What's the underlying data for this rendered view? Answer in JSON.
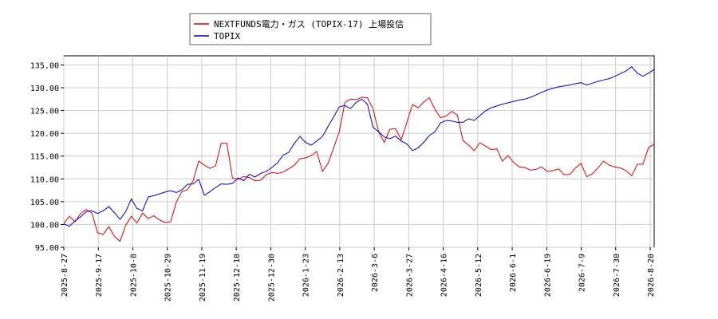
{
  "chart_data": {
    "type": "line",
    "title": "",
    "xlabel": "",
    "ylabel": "",
    "ylim": [
      95,
      137
    ],
    "y_ticks": [
      "95.00",
      "100.00",
      "105.00",
      "110.00",
      "115.00",
      "120.00",
      "125.00",
      "130.00",
      "135.00"
    ],
    "x_tick_labels": [
      "2025-8-27",
      "2025-9-17",
      "2025-10-8",
      "2025-10-29",
      "2025-11-19",
      "2025-12-10",
      "2025-12-30",
      "2026-1-23",
      "2026-2-13",
      "2026-3-6",
      "2026-3-27",
      "2026-4-16",
      "2026-5-12",
      "2026-6-1",
      "2026-6-19",
      "2026-7-9",
      "2026-7-30",
      "2026-8-20"
    ],
    "grid": true,
    "legend_position": "top-center",
    "series": [
      {
        "name": "NEXTFUNDS電力・ガス (TOPIX-17) 上場投信",
        "color": "#dd0000",
        "values": [
          100.2,
          101.8,
          100.6,
          102.4,
          103.3,
          102.5,
          98.2,
          97.8,
          99.5,
          97.4,
          96.3,
          99.8,
          101.8,
          100.3,
          102.5,
          101.3,
          101.9,
          101.0,
          100.4,
          100.6,
          104.9,
          107.2,
          107.6,
          109.6,
          113.9,
          113.0,
          112.3,
          112.9,
          117.8,
          117.8,
          110.2,
          109.9,
          110.5,
          110.3,
          109.6,
          109.7,
          110.9,
          111.4,
          111.2,
          111.5,
          112.2,
          113.0,
          114.4,
          114.6,
          115.1,
          116.0,
          111.6,
          113.4,
          116.8,
          120.4,
          126.8,
          127.5,
          127.4,
          127.9,
          127.8,
          125.4,
          120.3,
          118.0,
          120.9,
          121.0,
          118.6,
          122.3,
          126.3,
          125.6,
          126.8,
          127.8,
          125.3,
          123.4,
          123.8,
          124.8,
          124.0,
          118.4,
          117.4,
          116.2,
          117.9,
          117.2,
          116.4,
          116.6,
          113.9,
          115.1,
          113.6,
          112.6,
          112.5,
          111.9,
          112.1,
          112.6,
          111.6,
          111.8,
          112.2,
          110.9,
          111.0,
          112.4,
          113.4,
          110.5,
          111.1,
          112.4,
          113.9,
          113.0,
          112.6,
          112.4,
          111.8,
          110.7,
          113.2,
          113.2,
          116.9,
          117.6
        ]
      },
      {
        "name": "TOPIX",
        "color": "#0000cc",
        "values": [
          100.1,
          99.6,
          100.8,
          101.7,
          102.8,
          103.0,
          102.4,
          103.0,
          103.9,
          102.6,
          101.1,
          102.8,
          105.6,
          103.5,
          103.0,
          106.0,
          106.3,
          106.7,
          107.1,
          107.4,
          107.0,
          107.6,
          108.8,
          108.9,
          109.9,
          106.4,
          107.2,
          108.1,
          108.9,
          108.8,
          109.0,
          110.2,
          109.6,
          111.0,
          110.4,
          111.2,
          111.6,
          112.5,
          113.5,
          115.2,
          115.8,
          117.8,
          119.3,
          118.0,
          117.4,
          118.3,
          119.3,
          121.5,
          123.6,
          125.8,
          126.1,
          125.4,
          126.8,
          127.5,
          126.4,
          121.3,
          120.3,
          119.2,
          118.8,
          119.4,
          118.3,
          117.7,
          116.2,
          116.8,
          118.0,
          119.5,
          120.3,
          122.3,
          122.8,
          122.7,
          122.4,
          122.4,
          123.2,
          122.8,
          123.9,
          124.9,
          125.6,
          126.0,
          126.4,
          126.7,
          127.0,
          127.3,
          127.5,
          127.9,
          128.4,
          129.0,
          129.5,
          129.9,
          130.2,
          130.4,
          130.6,
          130.9,
          131.1,
          130.6,
          131.0,
          131.4,
          131.7,
          132.0,
          132.5,
          133.1,
          133.7,
          134.6,
          133.2,
          132.5,
          133.2,
          134.0
        ]
      }
    ]
  }
}
